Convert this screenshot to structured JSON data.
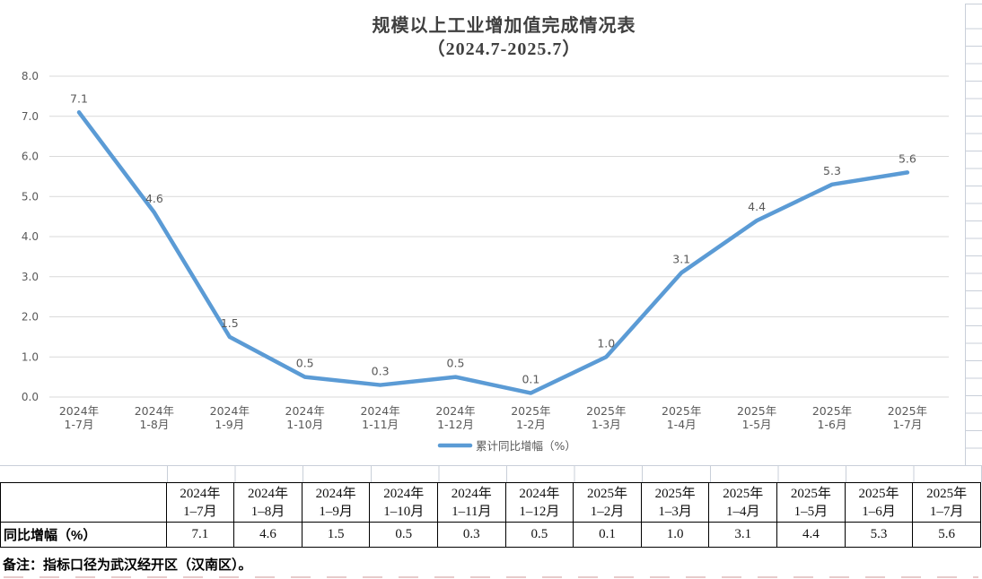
{
  "chart_data": {
    "type": "line",
    "title": "规模以上工业增加值完成情况表",
    "subtitle": "（2024.7-2025.7）",
    "categories": [
      "2024年\n1-7月",
      "2024年\n1-8月",
      "2024年\n1-9月",
      "2024年\n1-10月",
      "2024年\n1-11月",
      "2024年\n1-12月",
      "2025年\n1-2月",
      "2025年\n1-3月",
      "2025年\n1-4月",
      "2025年\n1-5月",
      "2025年\n1-6月",
      "2025年\n1-7月"
    ],
    "series": [
      {
        "name": "累计同比增幅（%）",
        "color": "#5b9bd5",
        "values": [
          7.1,
          4.6,
          1.5,
          0.5,
          0.3,
          0.5,
          0.1,
          1.0,
          3.1,
          4.4,
          5.3,
          5.6
        ]
      }
    ],
    "xlabel": "",
    "ylabel": "",
    "ylim": [
      0,
      8
    ],
    "y_tick_interval": 1,
    "y_tick_labels": [
      "0.0",
      "1.0",
      "2.0",
      "3.0",
      "4.0",
      "5.0",
      "6.0",
      "7.0",
      "8.0"
    ],
    "grid": true,
    "legend_position": "bottom",
    "data_labels": true,
    "label_color": "#595959",
    "grid_color": "#d9d9d9"
  },
  "table": {
    "row_label": "同比增幅（%）",
    "col_headers": [
      "2024年\n1–7月",
      "2024年\n1–8月",
      "2024年\n1–9月",
      "2024年\n1–10月",
      "2024年\n1–11月",
      "2024年\n1–12月",
      "2025年\n1–2月",
      "2025年\n1–3月",
      "2025年\n1–4月",
      "2025年\n1–5月",
      "2025年\n1–6月",
      "2025年\n1–7月"
    ],
    "values": [
      "7.1",
      "4.6",
      "1.5",
      "0.5",
      "0.3",
      "0.5",
      "0.1",
      "1.0",
      "3.1",
      "4.4",
      "5.3",
      "5.6"
    ]
  },
  "note": "备注：指标口径为武汉经开区（汉南区）。"
}
